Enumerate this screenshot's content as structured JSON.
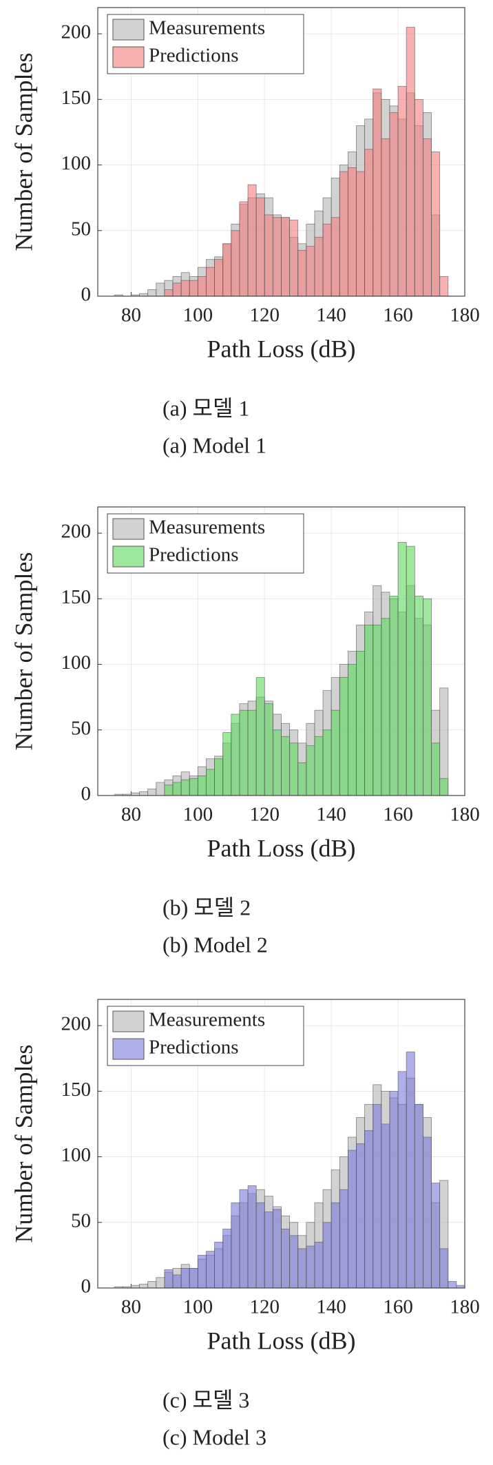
{
  "chart_data": [
    {
      "type": "histogram",
      "xlabel": "Path Loss (dB)",
      "ylabel": "Number of Samples",
      "caption_ko": "(a) 모델 1",
      "caption_en": "(a) Model 1",
      "xlim": [
        70,
        180
      ],
      "xticks": [
        80,
        100,
        120,
        140,
        160,
        180
      ],
      "ylim": [
        0,
        220
      ],
      "yticks": [
        0,
        50,
        100,
        150,
        200
      ],
      "grid": true,
      "legend": "upper left",
      "bins": [
        75,
        77.5,
        80,
        82.5,
        85,
        87.5,
        90,
        92.5,
        95,
        97.5,
        100,
        102.5,
        105,
        107.5,
        110,
        112.5,
        115,
        117.5,
        120,
        122.5,
        125,
        127.5,
        130,
        132.5,
        135,
        137.5,
        140,
        142.5,
        145,
        147.5,
        150,
        152.5,
        155,
        157.5,
        160,
        162.5,
        165,
        167.5,
        170,
        172.5,
        175
      ],
      "series": [
        {
          "name": "Measurements",
          "color": "#b4b4b4",
          "values": [
            1,
            0,
            1,
            2,
            5,
            10,
            12,
            15,
            18,
            15,
            22,
            28,
            30,
            40,
            55,
            70,
            75,
            78,
            75,
            62,
            60,
            45,
            40,
            55,
            65,
            75,
            90,
            100,
            110,
            130,
            135,
            155,
            150,
            145,
            135,
            155,
            130,
            140,
            62,
            0
          ]
        },
        {
          "name": "Predictions",
          "color": "#f47c7c",
          "values": [
            0,
            0,
            0,
            0,
            0,
            0,
            5,
            10,
            12,
            12,
            15,
            22,
            28,
            40,
            50,
            72,
            85,
            75,
            62,
            60,
            60,
            58,
            35,
            38,
            45,
            55,
            60,
            95,
            98,
            95,
            112,
            158,
            120,
            140,
            160,
            205,
            150,
            120,
            110,
            15
          ]
        }
      ]
    },
    {
      "type": "histogram",
      "xlabel": "Path Loss (dB)",
      "ylabel": "Number of Samples",
      "caption_ko": "(b) 모델 2",
      "caption_en": "(b) Model 2",
      "xlim": [
        70,
        180
      ],
      "xticks": [
        80,
        100,
        120,
        140,
        160,
        180
      ],
      "ylim": [
        0,
        220
      ],
      "yticks": [
        0,
        50,
        100,
        150,
        200
      ],
      "grid": true,
      "legend": "upper left",
      "bins": [
        75,
        77.5,
        80,
        82.5,
        85,
        87.5,
        90,
        92.5,
        95,
        97.5,
        100,
        102.5,
        105,
        107.5,
        110,
        112.5,
        115,
        117.5,
        120,
        122.5,
        125,
        127.5,
        130,
        132.5,
        135,
        137.5,
        140,
        142.5,
        145,
        147.5,
        150,
        152.5,
        155,
        157.5,
        160,
        162.5,
        165,
        167.5,
        170,
        172.5,
        175
      ],
      "series": [
        {
          "name": "Measurements",
          "color": "#b4b4b4",
          "values": [
            1,
            1,
            2,
            3,
            5,
            10,
            12,
            15,
            18,
            15,
            22,
            28,
            30,
            40,
            55,
            70,
            72,
            75,
            72,
            62,
            55,
            50,
            40,
            55,
            65,
            80,
            90,
            100,
            110,
            130,
            140,
            160,
            155,
            150,
            140,
            160,
            135,
            130,
            65,
            82
          ]
        },
        {
          "name": "Predictions",
          "color": "#5cd85c",
          "values": [
            0,
            0,
            0,
            0,
            0,
            0,
            8,
            10,
            12,
            13,
            15,
            20,
            28,
            48,
            62,
            65,
            65,
            90,
            70,
            50,
            45,
            40,
            25,
            38,
            45,
            50,
            65,
            90,
            100,
            110,
            130,
            130,
            135,
            152,
            193,
            190,
            152,
            150,
            40,
            13
          ]
        }
      ]
    },
    {
      "type": "histogram",
      "xlabel": "Path Loss (dB)",
      "ylabel": "Number of Samples",
      "caption_ko": "(c) 모델 3",
      "caption_en": "(c) Model 3",
      "xlim": [
        70,
        180
      ],
      "xticks": [
        80,
        100,
        120,
        140,
        160,
        180
      ],
      "ylim": [
        0,
        220
      ],
      "yticks": [
        0,
        50,
        100,
        150,
        200
      ],
      "grid": true,
      "legend": "upper left",
      "bins": [
        75,
        77.5,
        80,
        82.5,
        85,
        87.5,
        90,
        92.5,
        95,
        97.5,
        100,
        102.5,
        105,
        107.5,
        110,
        112.5,
        115,
        117.5,
        120,
        122.5,
        125,
        127.5,
        130,
        132.5,
        135,
        137.5,
        140,
        142.5,
        145,
        147.5,
        150,
        152.5,
        155,
        157.5,
        160,
        162.5,
        165,
        167.5,
        170,
        172.5,
        175,
        177.5,
        180
      ],
      "series": [
        {
          "name": "Measurements",
          "color": "#b4b4b4",
          "values": [
            1,
            1,
            2,
            3,
            5,
            8,
            12,
            15,
            18,
            15,
            22,
            25,
            30,
            40,
            55,
            65,
            72,
            75,
            70,
            62,
            55,
            50,
            40,
            50,
            65,
            75,
            90,
            100,
            115,
            130,
            140,
            155,
            150,
            145,
            140,
            160,
            140,
            130,
            65,
            82,
            0,
            0
          ]
        },
        {
          "name": "Predictions",
          "color": "#7878d8",
          "values": [
            0,
            0,
            0,
            0,
            0,
            0,
            14,
            10,
            15,
            15,
            25,
            28,
            35,
            45,
            65,
            75,
            78,
            65,
            58,
            60,
            45,
            40,
            30,
            32,
            35,
            50,
            65,
            75,
            105,
            110,
            120,
            140,
            125,
            150,
            165,
            180,
            140,
            115,
            80,
            30,
            5,
            2
          ]
        }
      ]
    }
  ]
}
